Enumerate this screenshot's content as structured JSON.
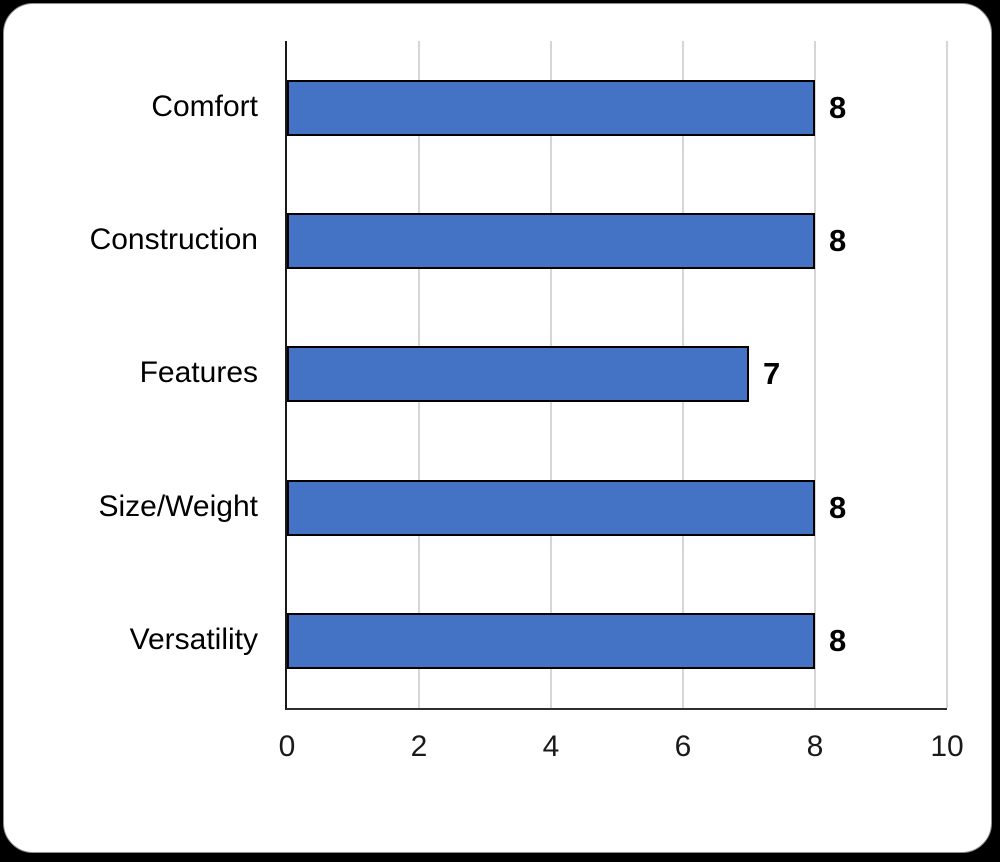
{
  "chart_data": {
    "type": "bar",
    "orientation": "horizontal",
    "title": "",
    "xlabel": "",
    "ylabel": "",
    "categories": [
      "Comfort",
      "Construction",
      "Features",
      "Size/Weight",
      "Versatility"
    ],
    "values": [
      8,
      8,
      7,
      8,
      8
    ],
    "data_labels": [
      "8",
      "8",
      "7",
      "8",
      "8"
    ],
    "xlim": [
      0,
      10
    ],
    "xticks": [
      0,
      2,
      4,
      6,
      8,
      10
    ],
    "xtick_labels": [
      "0",
      "2",
      "4",
      "6",
      "8",
      "10"
    ],
    "grid": "vertical-major-on",
    "legend": "none",
    "colors": {
      "bar_fill": "#4472C4",
      "bar_border": "#000000",
      "gridline": "#d6d6d6",
      "axis_line": "#1a1a1a",
      "plot_background": "#ffffff",
      "card_background": "#ffffff",
      "page_background": "#000000",
      "label_text": "#000000"
    }
  }
}
